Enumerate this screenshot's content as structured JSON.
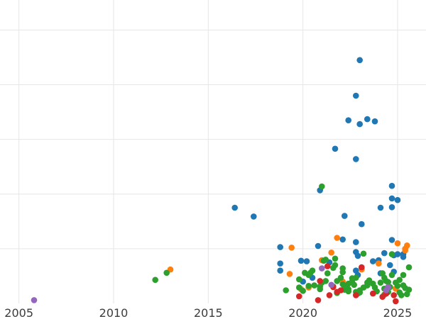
{
  "chart_data": {
    "type": "scatter",
    "title": "",
    "xlabel": "",
    "ylabel": "",
    "xlim": [
      2004.0,
      2026.5
    ],
    "ylim": [
      0,
      5.55
    ],
    "x_ticks": [
      2005,
      2010,
      2015,
      2020,
      2025
    ],
    "x_tick_labels": [
      "2005",
      "2010",
      "2015",
      "2020",
      "2025"
    ],
    "y_ticks": [
      1,
      2,
      3,
      4,
      5
    ],
    "grid": true,
    "legend": false,
    "series": [
      {
        "color": "#1f77b4",
        "points": [
          [
            2016.4,
            1.75
          ],
          [
            2017.4,
            1.59
          ],
          [
            2018.8,
            1.03
          ],
          [
            2018.8,
            0.73
          ],
          [
            2018.8,
            0.6
          ],
          [
            2019.9,
            0.78
          ],
          [
            2020.0,
            0.4
          ],
          [
            2020.5,
            0.47
          ],
          [
            2020.9,
            2.07
          ],
          [
            2020.8,
            1.05
          ],
          [
            2021.7,
            2.83
          ],
          [
            2022.2,
            1.6
          ],
          [
            2022.4,
            3.35
          ],
          [
            2022.8,
            3.8
          ],
          [
            2022.8,
            2.64
          ],
          [
            2023.0,
            4.45
          ],
          [
            2023.0,
            3.28
          ],
          [
            2023.1,
            1.45
          ],
          [
            2022.1,
            1.17
          ],
          [
            2022.8,
            1.12
          ],
          [
            2022.8,
            0.94
          ],
          [
            2022.9,
            0.87
          ],
          [
            2022.8,
            0.6
          ],
          [
            2022.9,
            0.52
          ],
          [
            2023.4,
            3.37
          ],
          [
            2023.1,
            0.64
          ],
          [
            2023.8,
            3.33
          ],
          [
            2023.7,
            0.77
          ],
          [
            2024.0,
            0.79
          ],
          [
            2024.1,
            1.75
          ],
          [
            2024.3,
            0.92
          ],
          [
            2024.1,
            0.55
          ],
          [
            2024.6,
            0.7
          ],
          [
            2024.7,
            2.15
          ],
          [
            2024.7,
            1.92
          ],
          [
            2024.7,
            1.76
          ],
          [
            2024.8,
            0.88
          ],
          [
            2024.8,
            0.58
          ],
          [
            2024.7,
            1.16
          ],
          [
            2025.0,
            1.89
          ],
          [
            2025.0,
            0.9
          ],
          [
            2025.3,
            0.85
          ],
          [
            2025.3,
            0.9
          ],
          [
            2020.2,
            0.77
          ],
          [
            2021.4,
            0.75
          ]
        ]
      },
      {
        "color": "#ff7f0e",
        "points": [
          [
            2013.0,
            0.62
          ],
          [
            2019.3,
            0.54
          ],
          [
            2019.4,
            1.02
          ],
          [
            2019.9,
            0.26
          ],
          [
            2020.3,
            0.29
          ],
          [
            2021.0,
            0.79
          ],
          [
            2021.5,
            0.93
          ],
          [
            2021.8,
            1.2
          ],
          [
            2022.1,
            0.4
          ],
          [
            2023.1,
            0.62
          ],
          [
            2024.0,
            0.73
          ],
          [
            2024.4,
            0.26
          ],
          [
            2024.9,
            0.27
          ],
          [
            2025.0,
            1.1
          ],
          [
            2025.5,
            1.06
          ],
          [
            2025.4,
            1.0
          ],
          [
            2025.4,
            0.97
          ]
        ]
      },
      {
        "color": "#2ca02c",
        "points": [
          [
            2012.2,
            0.43
          ],
          [
            2012.8,
            0.56
          ],
          [
            2021.0,
            2.14
          ],
          [
            2019.1,
            0.24
          ],
          [
            2019.8,
            0.29
          ],
          [
            2019.8,
            0.44
          ],
          [
            2020.0,
            0.23
          ],
          [
            2020.1,
            0.56
          ],
          [
            2020.3,
            0.52
          ],
          [
            2020.3,
            0.32
          ],
          [
            2020.4,
            0.56
          ],
          [
            2020.5,
            0.6
          ],
          [
            2020.9,
            0.31
          ],
          [
            2020.9,
            0.26
          ],
          [
            2020.6,
            0.33
          ],
          [
            2021.0,
            0.38
          ],
          [
            2021.1,
            0.78
          ],
          [
            2021.2,
            0.8
          ],
          [
            2021.3,
            0.55
          ],
          [
            2021.2,
            0.41
          ],
          [
            2021.6,
            0.65
          ],
          [
            2021.7,
            0.82
          ],
          [
            2021.7,
            0.7
          ],
          [
            2021.6,
            0.31
          ],
          [
            2021.8,
            0.41
          ],
          [
            2021.8,
            0.19
          ],
          [
            2022.0,
            0.47
          ],
          [
            2022.1,
            0.64
          ],
          [
            2022.1,
            0.57
          ],
          [
            2022.1,
            0.35
          ],
          [
            2022.2,
            0.3
          ],
          [
            2022.2,
            0.25
          ],
          [
            2022.4,
            0.36
          ],
          [
            2022.4,
            0.26
          ],
          [
            2022.4,
            0.22
          ],
          [
            2022.6,
            0.4
          ],
          [
            2022.6,
            0.46
          ],
          [
            2022.7,
            0.34
          ],
          [
            2022.8,
            0.21
          ],
          [
            2022.8,
            0.47
          ],
          [
            2022.9,
            0.18
          ],
          [
            2023.0,
            0.2
          ],
          [
            2023.0,
            0.24
          ],
          [
            2023.2,
            0.29
          ],
          [
            2023.2,
            0.91
          ],
          [
            2023.4,
            0.33
          ],
          [
            2023.4,
            0.38
          ],
          [
            2023.5,
            0.42
          ],
          [
            2023.7,
            0.36
          ],
          [
            2023.8,
            0.29
          ],
          [
            2023.9,
            0.22
          ],
          [
            2024.1,
            0.38
          ],
          [
            2024.2,
            0.55
          ],
          [
            2024.3,
            0.47
          ],
          [
            2024.3,
            0.27
          ],
          [
            2024.3,
            0.16
          ],
          [
            2024.4,
            0.41
          ],
          [
            2024.5,
            0.39
          ],
          [
            2024.5,
            0.21
          ],
          [
            2024.6,
            0.3
          ],
          [
            2024.7,
            0.52
          ],
          [
            2024.7,
            0.9
          ],
          [
            2024.9,
            0.38
          ],
          [
            2025.0,
            0.32
          ],
          [
            2025.1,
            0.43
          ],
          [
            2025.1,
            0.2
          ],
          [
            2025.2,
            0.15
          ],
          [
            2025.3,
            0.33
          ],
          [
            2025.3,
            0.52
          ],
          [
            2025.4,
            0.28
          ],
          [
            2025.5,
            0.17
          ],
          [
            2025.6,
            0.66
          ],
          [
            2025.6,
            0.25
          ]
        ]
      },
      {
        "color": "#d62728",
        "points": [
          [
            2019.8,
            0.13
          ],
          [
            2020.8,
            0.06
          ],
          [
            2020.9,
            0.41
          ],
          [
            2021.3,
            0.68
          ],
          [
            2021.4,
            0.15
          ],
          [
            2021.6,
            0.3
          ],
          [
            2021.8,
            0.21
          ],
          [
            2022.0,
            0.24
          ],
          [
            2022.8,
            0.15
          ],
          [
            2023.1,
            0.66
          ],
          [
            2023.7,
            0.18
          ],
          [
            2024.2,
            0.12
          ],
          [
            2024.4,
            0.18
          ],
          [
            2024.8,
            0.15
          ],
          [
            2024.9,
            0.04
          ]
        ]
      },
      {
        "color": "#9467bd",
        "points": [
          [
            2005.8,
            0.06
          ],
          [
            2021.0,
            0.64
          ],
          [
            2021.5,
            0.34
          ],
          [
            2024.4,
            0.24
          ],
          [
            2024.5,
            0.3
          ]
        ]
      }
    ]
  }
}
